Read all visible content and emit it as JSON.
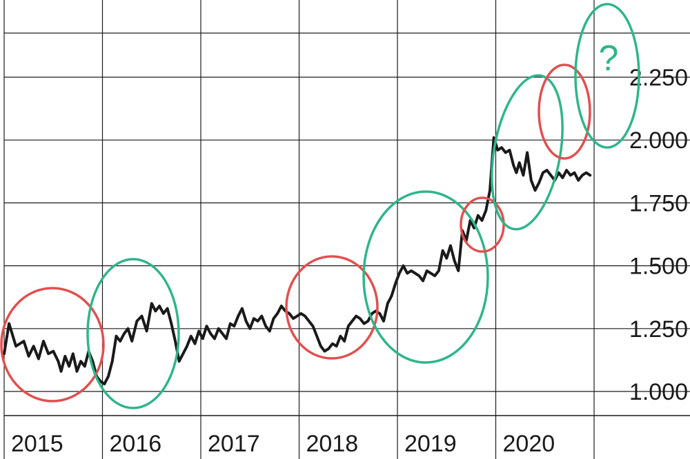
{
  "chart_data": {
    "type": "line",
    "title": "",
    "xlabel": "",
    "ylabel": "",
    "x_tick_labels": [
      "2015",
      "2016",
      "2017",
      "2018",
      "2019",
      "2020"
    ],
    "y_tick_labels": [
      "1.000",
      "1.250",
      "1.500",
      "1.750",
      "2.000",
      "2.250"
    ],
    "y_tick_values": [
      1000,
      1250,
      1500,
      1750,
      2000,
      2250
    ],
    "grid": true,
    "colors": {
      "line": "#1a1a1a",
      "red_circle": "#e0504f",
      "green_circle": "#2fb58a",
      "grid": "#1a1a1a"
    },
    "series": [
      {
        "x": [
          2015.0,
          2015.05,
          2015.12,
          2015.2,
          2015.25,
          2015.3,
          2015.35,
          2015.4,
          2015.45,
          2015.5,
          2015.55,
          2015.58,
          2015.62,
          2015.66,
          2015.7,
          2015.74,
          2015.78,
          2015.82,
          2015.86,
          2015.9,
          2015.94,
          2015.98,
          2016.02,
          2016.06,
          2016.1,
          2016.14,
          2016.18,
          2016.22,
          2016.26,
          2016.3,
          2016.35,
          2016.4,
          2016.45,
          2016.5,
          2016.54,
          2016.58,
          2016.62,
          2016.66,
          2016.7,
          2016.74,
          2016.78,
          2016.82,
          2016.86,
          2016.9,
          2016.94,
          2016.98,
          2017.02,
          2017.06,
          2017.1,
          2017.14,
          2017.18,
          2017.22,
          2017.26,
          2017.3,
          2017.34,
          2017.38,
          2017.42,
          2017.46,
          2017.5,
          2017.54,
          2017.58,
          2017.62,
          2017.66,
          2017.7,
          2017.74,
          2017.78,
          2017.82,
          2017.86,
          2017.9,
          2017.94,
          2017.98,
          2018.02,
          2018.06,
          2018.1,
          2018.14,
          2018.18,
          2018.22,
          2018.26,
          2018.3,
          2018.34,
          2018.38,
          2018.42,
          2018.46,
          2018.5,
          2018.54,
          2018.58,
          2018.62,
          2018.66,
          2018.7,
          2018.74,
          2018.78,
          2018.82,
          2018.86,
          2018.9,
          2018.94,
          2018.98,
          2019.02,
          2019.06,
          2019.1,
          2019.14,
          2019.18,
          2019.22,
          2019.26,
          2019.3,
          2019.34,
          2019.38,
          2019.42,
          2019.46,
          2019.5,
          2019.54,
          2019.58,
          2019.62,
          2019.66,
          2019.7,
          2019.74,
          2019.78,
          2019.82,
          2019.86,
          2019.9,
          2019.94,
          2019.98,
          2020.02,
          2020.06,
          2020.1,
          2020.14,
          2020.18,
          2020.21,
          2020.24,
          2020.28,
          2020.32,
          2020.36,
          2020.4,
          2020.44,
          2020.48,
          2020.52,
          2020.56,
          2020.6,
          2020.64,
          2020.68,
          2020.72,
          2020.76,
          2020.8,
          2020.84,
          2020.88,
          2020.92,
          2020.96
        ],
        "y": [
          1150,
          1270,
          1180,
          1200,
          1140,
          1180,
          1130,
          1200,
          1150,
          1160,
          1120,
          1080,
          1140,
          1100,
          1150,
          1080,
          1120,
          1100,
          1160,
          1120,
          1060,
          1040,
          1030,
          1060,
          1120,
          1220,
          1200,
          1230,
          1250,
          1200,
          1280,
          1300,
          1240,
          1350,
          1320,
          1340,
          1310,
          1330,
          1270,
          1200,
          1120,
          1150,
          1180,
          1220,
          1190,
          1240,
          1210,
          1260,
          1230,
          1210,
          1250,
          1230,
          1210,
          1270,
          1260,
          1300,
          1330,
          1280,
          1250,
          1290,
          1280,
          1300,
          1260,
          1240,
          1290,
          1310,
          1340,
          1320,
          1310,
          1290,
          1300,
          1310,
          1300,
          1280,
          1260,
          1220,
          1180,
          1160,
          1170,
          1190,
          1180,
          1220,
          1200,
          1260,
          1280,
          1300,
          1290,
          1270,
          1280,
          1310,
          1320,
          1310,
          1280,
          1350,
          1380,
          1430,
          1470,
          1500,
          1470,
          1480,
          1470,
          1460,
          1440,
          1480,
          1470,
          1460,
          1480,
          1560,
          1530,
          1580,
          1520,
          1480,
          1640,
          1600,
          1680,
          1650,
          1700,
          1680,
          1720,
          1800,
          2010,
          1960,
          1970,
          1950,
          1960,
          1900,
          1870,
          1910,
          1860,
          1950,
          1840,
          1800,
          1830,
          1870,
          1880,
          1860,
          1840,
          1870,
          1850,
          1880,
          1860,
          1870,
          1840,
          1860,
          1870,
          1860
        ]
      }
    ],
    "annotations": [
      {
        "type": "ellipse",
        "color": "red",
        "label": ""
      },
      {
        "type": "ellipse",
        "color": "green",
        "label": ""
      },
      {
        "type": "ellipse",
        "color": "red",
        "label": ""
      },
      {
        "type": "ellipse",
        "color": "green",
        "label": ""
      },
      {
        "type": "ellipse",
        "color": "red",
        "label": ""
      },
      {
        "type": "ellipse",
        "color": "green",
        "label": ""
      },
      {
        "type": "ellipse",
        "color": "red",
        "label": ""
      },
      {
        "type": "ellipse",
        "color": "green",
        "label": "?"
      }
    ]
  }
}
